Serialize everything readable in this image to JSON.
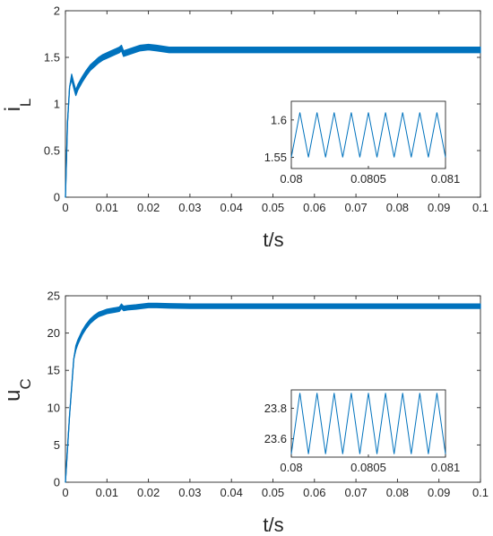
{
  "chart_data": [
    {
      "type": "line",
      "ylabel_main": "i",
      "ylabel_sub": "L",
      "xlabel": "t/s",
      "xlim": [
        0,
        0.1
      ],
      "ylim": [
        0,
        2
      ],
      "xticks": [
        "0",
        "0.01",
        "0.02",
        "0.03",
        "0.04",
        "0.05",
        "0.06",
        "0.07",
        "0.08",
        "0.09",
        "0.1"
      ],
      "yticks": [
        "0",
        "0.5",
        "1",
        "1.5",
        "2"
      ],
      "grid": false,
      "color": "#0072BD",
      "series": [
        {
          "x": [
            0,
            0.0005,
            0.001,
            0.0015,
            0.002,
            0.0025,
            0.003,
            0.004,
            0.005,
            0.006,
            0.007,
            0.008,
            0.009,
            0.01,
            0.011,
            0.012,
            0.013,
            0.0135,
            0.014,
            0.016,
            0.018,
            0.02,
            0.022,
            0.025,
            0.03,
            0.04,
            0.05,
            0.06,
            0.07,
            0.08,
            0.09,
            0.1
          ],
          "y": [
            0,
            0.8,
            1.18,
            1.29,
            1.2,
            1.12,
            1.18,
            1.26,
            1.33,
            1.39,
            1.43,
            1.47,
            1.5,
            1.52,
            1.54,
            1.56,
            1.58,
            1.6,
            1.54,
            1.57,
            1.6,
            1.61,
            1.6,
            1.58,
            1.58,
            1.58,
            1.58,
            1.58,
            1.58,
            1.58,
            1.58,
            1.58
          ],
          "ripple": 0.03
        }
      ],
      "inset": {
        "xlim": [
          0.08,
          0.081
        ],
        "ylim": [
          1.535,
          1.625
        ],
        "xticks": [
          "0.08",
          "0.0805",
          "0.081"
        ],
        "yticks": [
          "1.55",
          "1.6"
        ],
        "ytick_values": [
          1.55,
          1.6
        ],
        "y_min": 1.55,
        "y_max": 1.61,
        "cycles": 9
      }
    },
    {
      "type": "line",
      "ylabel_main": "u",
      "ylabel_sub": "C",
      "xlabel": "t/s",
      "xlim": [
        0,
        0.1
      ],
      "ylim": [
        0,
        25
      ],
      "xticks": [
        "0",
        "0.01",
        "0.02",
        "0.03",
        "0.04",
        "0.05",
        "0.06",
        "0.07",
        "0.08",
        "0.09",
        "0.1"
      ],
      "yticks": [
        "0",
        "5",
        "10",
        "15",
        "20",
        "25"
      ],
      "grid": false,
      "color": "#0072BD",
      "series": [
        {
          "x": [
            0,
            0.001,
            0.002,
            0.0025,
            0.003,
            0.004,
            0.005,
            0.006,
            0.007,
            0.008,
            0.009,
            0.01,
            0.012,
            0.013,
            0.0135,
            0.014,
            0.015,
            0.017,
            0.02,
            0.022,
            0.025,
            0.03,
            0.04,
            0.05,
            0.06,
            0.07,
            0.08,
            0.09,
            0.1
          ],
          "y": [
            0,
            9,
            16.5,
            18.0,
            18.8,
            20.0,
            20.9,
            21.6,
            22.1,
            22.5,
            22.7,
            22.9,
            23.1,
            23.2,
            23.6,
            23.3,
            23.4,
            23.5,
            23.7,
            23.7,
            23.65,
            23.6,
            23.6,
            23.6,
            23.6,
            23.6,
            23.6,
            23.6,
            23.6
          ],
          "ripple": 0.3
        }
      ],
      "inset": {
        "xlim": [
          0.08,
          0.081
        ],
        "ylim": [
          23.48,
          23.92
        ],
        "xticks": [
          "0.08",
          "0.0805",
          "0.081"
        ],
        "yticks": [
          "23.6",
          "23.8"
        ],
        "ytick_values": [
          23.6,
          23.8
        ],
        "y_min": 23.5,
        "y_max": 23.9,
        "cycles": 9
      }
    }
  ]
}
